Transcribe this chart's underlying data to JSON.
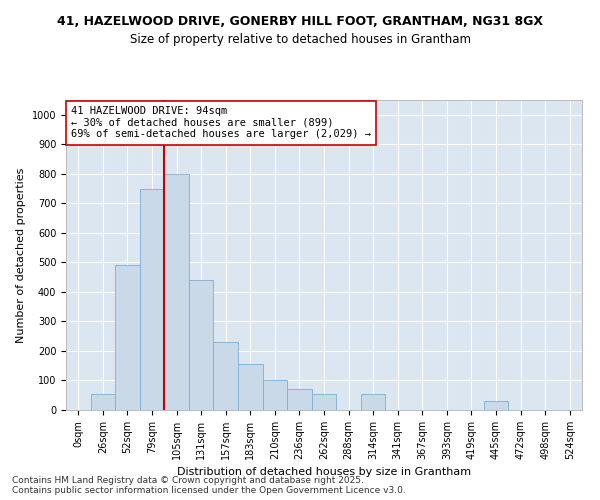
{
  "title_line1": "41, HAZELWOOD DRIVE, GONERBY HILL FOOT, GRANTHAM, NG31 8GX",
  "title_line2": "Size of property relative to detached houses in Grantham",
  "xlabel": "Distribution of detached houses by size in Grantham",
  "ylabel": "Number of detached properties",
  "categories": [
    "0sqm",
    "26sqm",
    "52sqm",
    "79sqm",
    "105sqm",
    "131sqm",
    "157sqm",
    "183sqm",
    "210sqm",
    "236sqm",
    "262sqm",
    "288sqm",
    "314sqm",
    "341sqm",
    "367sqm",
    "393sqm",
    "419sqm",
    "445sqm",
    "472sqm",
    "498sqm",
    "524sqm"
  ],
  "bar_heights": [
    0,
    55,
    490,
    750,
    800,
    440,
    230,
    155,
    100,
    70,
    55,
    0,
    55,
    0,
    0,
    0,
    0,
    30,
    0,
    0,
    0
  ],
  "bar_color": "#c9d9e8",
  "bar_edge_color": "#7bafd4",
  "vline_color": "#cc0000",
  "vline_position": 3.5,
  "annotation_text": "41 HAZELWOOD DRIVE: 94sqm\n← 30% of detached houses are smaller (899)\n69% of semi-detached houses are larger (2,029) →",
  "annotation_box_facecolor": "#ffffff",
  "annotation_box_edgecolor": "#cc0000",
  "ylim": [
    0,
    1050
  ],
  "yticks": [
    0,
    100,
    200,
    300,
    400,
    500,
    600,
    700,
    800,
    900,
    1000
  ],
  "plot_bg_color": "#dce6f0",
  "fig_bg_color": "#ffffff",
  "footer_line1": "Contains HM Land Registry data © Crown copyright and database right 2025.",
  "footer_line2": "Contains public sector information licensed under the Open Government Licence v3.0.",
  "title_fontsize": 9,
  "subtitle_fontsize": 8.5,
  "axis_label_fontsize": 8,
  "tick_fontsize": 7,
  "annotation_fontsize": 7.5,
  "footer_fontsize": 6.5
}
